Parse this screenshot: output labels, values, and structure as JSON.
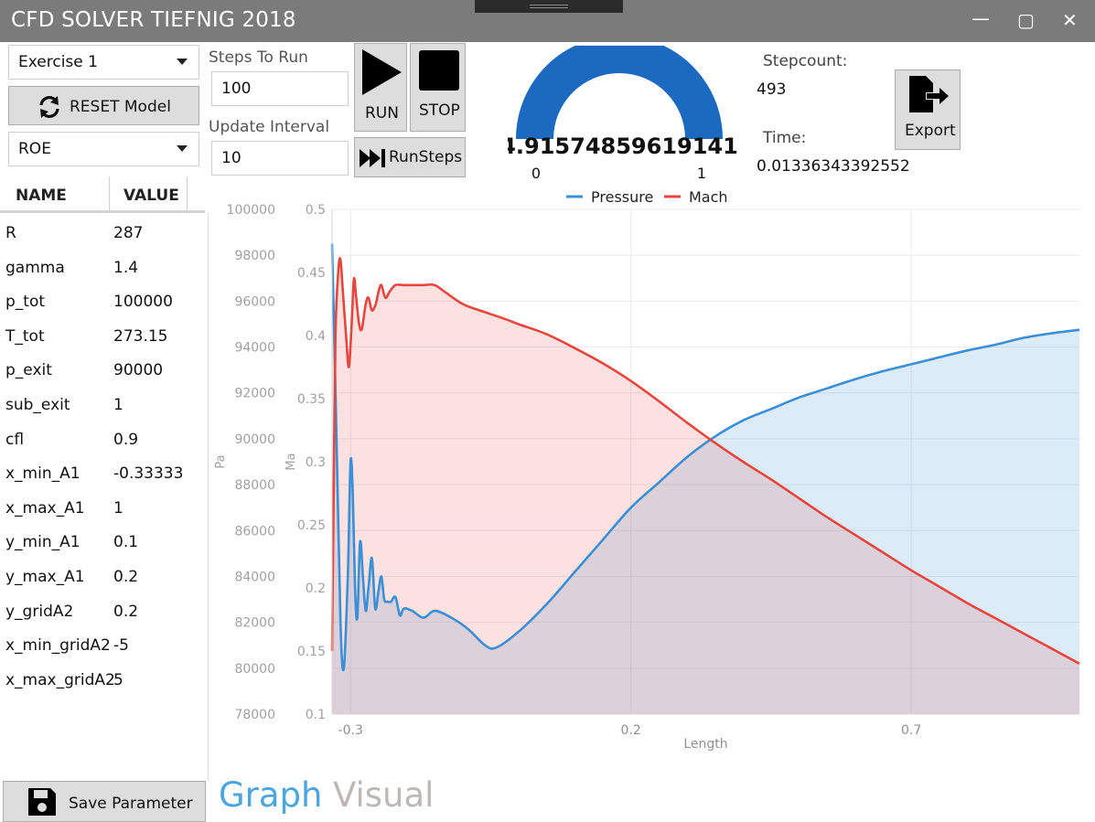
{
  "window": {
    "title": "CFD SOLVER TIEFNIG 2018",
    "min_glyph": "—",
    "max_glyph": "▢",
    "close_glyph": "✕"
  },
  "toolbar": {
    "exercise_select": "Exercise 1",
    "reset_label": "RESET Model",
    "scheme_select": "ROE",
    "steps_label": "Steps To Run",
    "steps_value": "100",
    "interval_label": "Update Interval",
    "interval_value": "10",
    "run_label": "RUN",
    "stop_label": "STOP",
    "runsteps_label": "RunSteps",
    "export_label": "Export"
  },
  "gauge": {
    "value": "4.91574859619141",
    "min": "0",
    "max": "1",
    "fill": 1.0
  },
  "stats": {
    "stepcount_label": "Stepcount:",
    "stepcount_value": "493",
    "time_label": "Time:",
    "time_value": "0.01336343392552"
  },
  "params": {
    "header_name": "NAME",
    "header_value": "VALUE",
    "rows": [
      {
        "name": "R",
        "value": "287"
      },
      {
        "name": "gamma",
        "value": "1.4"
      },
      {
        "name": "p_tot",
        "value": "100000"
      },
      {
        "name": "T_tot",
        "value": "273.15"
      },
      {
        "name": "p_exit",
        "value": "90000"
      },
      {
        "name": "sub_exit",
        "value": "1"
      },
      {
        "name": "cfl",
        "value": "0.9"
      },
      {
        "name": "x_min_A1",
        "value": "-0.33333"
      },
      {
        "name": "x_max_A1",
        "value": "1"
      },
      {
        "name": "y_min_A1",
        "value": "0.1"
      },
      {
        "name": "y_max_A1",
        "value": "0.2"
      },
      {
        "name": "y_gridA2",
        "value": "0.2"
      },
      {
        "name": "x_min_gridA2",
        "value": "-5"
      },
      {
        "name": "x_max_gridA2",
        "value": "5"
      }
    ]
  },
  "bottom": {
    "save_label": "Save Parameter",
    "tab_graph": "Graph",
    "tab_visual": "Visual"
  },
  "colors": {
    "pressure": "#3a8fd6",
    "mach": "#e8453c",
    "gauge": "#1b6ac0",
    "tab_active": "#4aa6de",
    "tab_inactive": "#bdb7b7"
  },
  "chart_data": {
    "type": "line",
    "xlabel": "Length",
    "ylabel_left": "Pa",
    "ylabel_right": "Ma",
    "xlim": [
      -0.333,
      1.0
    ],
    "x_ticks": [
      "-0.3",
      "0.2",
      "0.7"
    ],
    "y_left_lim": [
      78000,
      100000
    ],
    "y_left_ticks": [
      "100000",
      "98000",
      "96000",
      "94000",
      "92000",
      "90000",
      "88000",
      "86000",
      "84000",
      "82000",
      "80000",
      "78000"
    ],
    "y_right_lim": [
      0.1,
      0.5
    ],
    "y_right_ticks": [
      "0.5",
      "0.45",
      "0.4",
      "0.35",
      "0.3",
      "0.25",
      "0.2",
      "0.15",
      "0.1"
    ],
    "grid": true,
    "legend_position": "top",
    "series": [
      {
        "name": "Pressure",
        "axis": "left",
        "x": [
          -0.333,
          -0.325,
          -0.318,
          -0.312,
          -0.305,
          -0.3,
          -0.296,
          -0.292,
          -0.288,
          -0.283,
          -0.278,
          -0.273,
          -0.268,
          -0.262,
          -0.256,
          -0.25,
          -0.245,
          -0.24,
          -0.234,
          -0.228,
          -0.22,
          -0.212,
          -0.205,
          -0.19,
          -0.17,
          -0.15,
          -0.12,
          -0.09,
          -0.06,
          -0.04,
          0.0,
          0.05,
          0.1,
          0.15,
          0.2,
          0.25,
          0.3,
          0.35,
          0.4,
          0.45,
          0.5,
          0.55,
          0.6,
          0.65,
          0.7,
          0.75,
          0.8,
          0.85,
          0.9,
          0.95,
          1.0
        ],
        "y": [
          98500,
          90000,
          82000,
          80000,
          84000,
          89000,
          87500,
          83500,
          82200,
          85500,
          84000,
          82500,
          83500,
          84800,
          82600,
          83400,
          84000,
          83000,
          82900,
          82900,
          83100,
          82300,
          82600,
          82500,
          82200,
          82500,
          82200,
          81700,
          81000,
          80900,
          81600,
          82800,
          84200,
          85600,
          87000,
          88100,
          89200,
          90100,
          90800,
          91300,
          91800,
          92200,
          92600,
          92950,
          93250,
          93550,
          93850,
          94100,
          94400,
          94600,
          94750
        ]
      },
      {
        "name": "Mach",
        "axis": "right",
        "x": [
          -0.333,
          -0.33,
          -0.327,
          -0.322,
          -0.318,
          -0.313,
          -0.308,
          -0.303,
          -0.298,
          -0.294,
          -0.29,
          -0.285,
          -0.28,
          -0.273,
          -0.268,
          -0.262,
          -0.255,
          -0.25,
          -0.245,
          -0.238,
          -0.23,
          -0.22,
          -0.205,
          -0.19,
          -0.17,
          -0.15,
          -0.13,
          -0.1,
          -0.07,
          -0.03,
          0.0,
          0.05,
          0.1,
          0.15,
          0.2,
          0.25,
          0.3,
          0.35,
          0.4,
          0.45,
          0.5,
          0.55,
          0.6,
          0.65,
          0.7,
          0.75,
          0.8,
          0.85,
          0.9,
          0.95,
          1.0
        ],
        "y": [
          0.15,
          0.28,
          0.4,
          0.45,
          0.46,
          0.43,
          0.4,
          0.375,
          0.41,
          0.445,
          0.43,
          0.41,
          0.405,
          0.425,
          0.43,
          0.42,
          0.425,
          0.435,
          0.44,
          0.43,
          0.435,
          0.44,
          0.44,
          0.44,
          0.44,
          0.44,
          0.434,
          0.425,
          0.42,
          0.414,
          0.409,
          0.401,
          0.39,
          0.378,
          0.364,
          0.348,
          0.331,
          0.315,
          0.3,
          0.286,
          0.271,
          0.256,
          0.242,
          0.228,
          0.214,
          0.201,
          0.188,
          0.176,
          0.164,
          0.152,
          0.14
        ]
      }
    ]
  }
}
